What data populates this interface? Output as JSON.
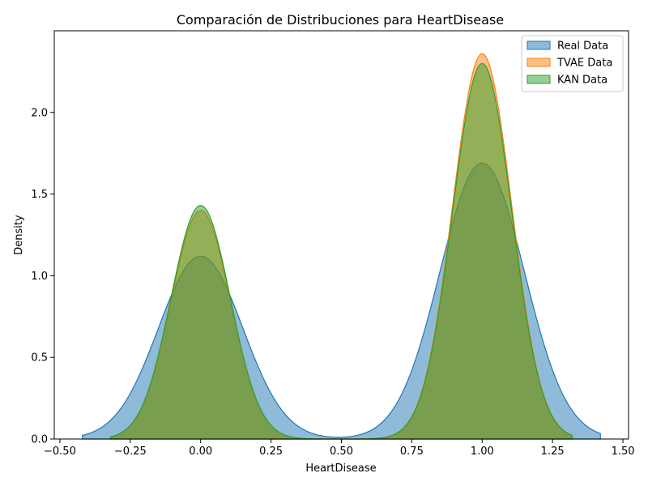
{
  "chart_data": {
    "type": "area",
    "title": "Comparación de Distribuciones para HeartDisease",
    "xlabel": "HeartDisease",
    "ylabel": "Density",
    "xlim": [
      -0.52,
      1.52
    ],
    "ylim": [
      0,
      2.5
    ],
    "x_ticks": [
      -0.5,
      -0.25,
      0.0,
      0.25,
      0.5,
      0.75,
      1.0,
      1.25,
      1.5
    ],
    "x_tick_labels": [
      "−0.50",
      "−0.25",
      "0.00",
      "0.25",
      "0.50",
      "0.75",
      "1.00",
      "1.25",
      "1.50"
    ],
    "y_ticks": [
      0.0,
      0.5,
      1.0,
      1.5,
      2.0
    ],
    "y_tick_labels": [
      "0.0",
      "0.5",
      "1.0",
      "1.5",
      "2.0"
    ],
    "grid": false,
    "legend_position": "top-right",
    "series": [
      {
        "name": "Real Data",
        "color": "#1f77b4",
        "x_range": [
          -0.42,
          1.42
        ],
        "peaks": [
          {
            "x": 0.0,
            "density": 1.12,
            "sigma": 0.15
          },
          {
            "x": 1.0,
            "density": 1.69,
            "sigma": 0.15
          }
        ]
      },
      {
        "name": "TVAE Data",
        "color": "#ff7f0e",
        "x_range": [
          -0.32,
          1.32
        ],
        "peaks": [
          {
            "x": 0.0,
            "density": 1.4,
            "sigma": 0.105
          },
          {
            "x": 1.0,
            "density": 2.36,
            "sigma": 0.105
          }
        ]
      },
      {
        "name": "KAN Data",
        "color": "#2ca02c",
        "x_range": [
          -0.32,
          1.32
        ],
        "peaks": [
          {
            "x": 0.0,
            "density": 1.43,
            "sigma": 0.105
          },
          {
            "x": 1.0,
            "density": 2.3,
            "sigma": 0.105
          }
        ]
      }
    ]
  }
}
